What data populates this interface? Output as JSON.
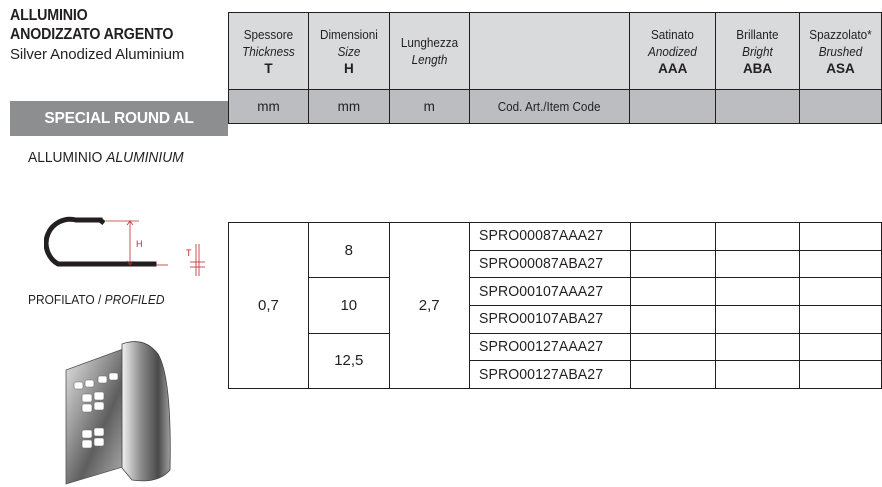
{
  "title": {
    "line1": "ALLUMINIO",
    "line2": "ANODIZZATO ARGENTO",
    "line3": "Silver Anodized Aluminium"
  },
  "banner": "SPECIAL ROUND AL",
  "material": {
    "main": "ALLUMINIO",
    "italic": "ALUMINIUM"
  },
  "profiled": {
    "main": "PROFILATO /",
    "italic": "PROFILED"
  },
  "diagram": {
    "label_h": "H",
    "label_t": "T"
  },
  "header": {
    "thickness": {
      "it_label": "Spessore",
      "en_label": "Thickness",
      "symbol": "T",
      "unit": "mm"
    },
    "dimensions": {
      "it_label": "Dimensioni",
      "en_label": "Size",
      "symbol": "H",
      "unit": "mm"
    },
    "length": {
      "it_label": "Lunghezza",
      "en_label": "Length",
      "unit": "m"
    },
    "code": {
      "label": "Cod. Art./Item Code"
    },
    "finishes": [
      {
        "it_label": "Satinato",
        "en_label": "Anodized",
        "code": "AAA"
      },
      {
        "it_label": "Brillante",
        "en_label": "Bright",
        "code": "ABA"
      },
      {
        "it_label": "Spazzolato*",
        "en_label": "Brushed",
        "code": "ASA"
      }
    ]
  },
  "table": {
    "thickness": "0,7",
    "length": "2,7",
    "sizes": [
      "8",
      "10",
      "12,5"
    ],
    "codes": [
      "SPRO00087AAA27",
      "SPRO00087ABA27",
      "SPRO00107AAA27",
      "SPRO00107ABA27",
      "SPRO00127AAA27",
      "SPRO00127ABA27"
    ]
  },
  "colors": {
    "banner_bg": "#8d8e90",
    "header_bg": "#d9dadb",
    "unit_row_bg": "#bcbdc0",
    "dimension_accent": "#c1272d"
  }
}
